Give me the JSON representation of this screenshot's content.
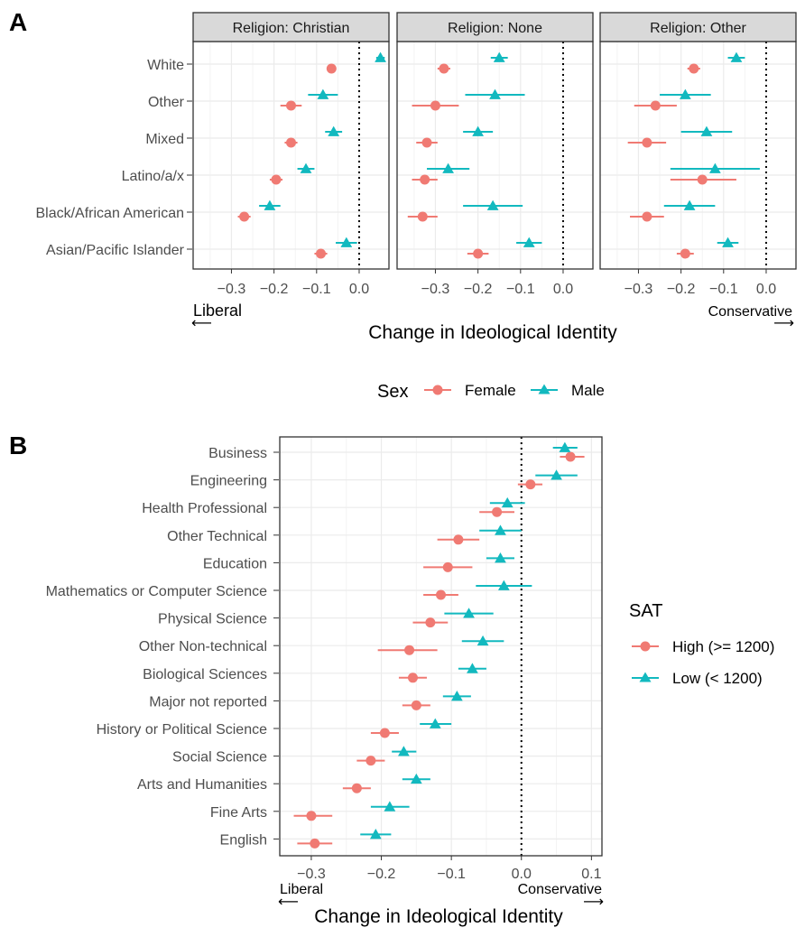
{
  "colors": {
    "female": "#F07A73",
    "male": "#12B9BF",
    "panel_bg": "#ffffff",
    "strip_bg": "#d9d9d9",
    "grid": "#ebebeb",
    "axis_text": "#4d4d4d"
  },
  "chart_data": [
    {
      "panel_label": "A",
      "type": "scatter",
      "subtype": "dot-and-whisker",
      "facets": [
        "Religion: Christian",
        "Religion: None",
        "Religion: Other"
      ],
      "categories": [
        "White",
        "Other",
        "Mixed",
        "Latino/a/x",
        "Black/African American",
        "Asian/Pacific Islander"
      ],
      "xticks": [
        "−0.3",
        "−0.2",
        "−0.1",
        "0.0"
      ],
      "xtick_values": [
        -0.3,
        -0.2,
        -0.1,
        0.0
      ],
      "xlim": [
        -0.39,
        0.07
      ],
      "xlabel": "Change in Ideological Identity",
      "left_annotation": "Liberal",
      "right_annotation": "Conservative",
      "left_arrow": "⟵",
      "right_arrow": "⟶",
      "reference_line": 0,
      "legend": {
        "title": "Sex",
        "position": "bottom",
        "entries": [
          {
            "label": "Female",
            "shape": "circle"
          },
          {
            "label": "Male",
            "shape": "triangle"
          }
        ]
      },
      "series": [
        {
          "name": "Female",
          "facet_values": [
            {
              "est": [
                -0.065,
                -0.16,
                -0.16,
                -0.195,
                -0.27,
                -0.09
              ],
              "lo": [
                -0.075,
                -0.185,
                -0.175,
                -0.21,
                -0.285,
                -0.105
              ],
              "hi": [
                -0.055,
                -0.135,
                -0.145,
                -0.18,
                -0.255,
                -0.075
              ]
            },
            {
              "est": [
                -0.28,
                -0.3,
                -0.32,
                -0.325,
                -0.33,
                -0.2
              ],
              "lo": [
                -0.295,
                -0.355,
                -0.345,
                -0.355,
                -0.365,
                -0.225
              ],
              "hi": [
                -0.265,
                -0.245,
                -0.295,
                -0.295,
                -0.295,
                -0.175
              ]
            },
            {
              "est": [
                -0.17,
                -0.26,
                -0.28,
                -0.15,
                -0.28,
                -0.19
              ],
              "lo": [
                -0.185,
                -0.31,
                -0.325,
                -0.225,
                -0.32,
                -0.21
              ],
              "hi": [
                -0.155,
                -0.21,
                -0.235,
                -0.07,
                -0.24,
                -0.17
              ]
            }
          ]
        },
        {
          "name": "Male",
          "facet_values": [
            {
              "est": [
                0.05,
                -0.085,
                -0.06,
                -0.125,
                -0.21,
                -0.03
              ],
              "lo": [
                0.04,
                -0.12,
                -0.08,
                -0.145,
                -0.235,
                -0.055
              ],
              "hi": [
                0.06,
                -0.05,
                -0.04,
                -0.105,
                -0.185,
                -0.005
              ]
            },
            {
              "est": [
                -0.15,
                -0.16,
                -0.2,
                -0.27,
                -0.165,
                -0.08
              ],
              "lo": [
                -0.17,
                -0.23,
                -0.235,
                -0.32,
                -0.235,
                -0.11
              ],
              "hi": [
                -0.13,
                -0.09,
                -0.165,
                -0.22,
                -0.095,
                -0.05
              ]
            },
            {
              "est": [
                -0.07,
                -0.19,
                -0.14,
                -0.12,
                -0.18,
                -0.09
              ],
              "lo": [
                -0.09,
                -0.25,
                -0.2,
                -0.225,
                -0.24,
                -0.115
              ],
              "hi": [
                -0.05,
                -0.13,
                -0.08,
                -0.015,
                -0.12,
                -0.065
              ]
            }
          ]
        }
      ]
    },
    {
      "panel_label": "B",
      "type": "scatter",
      "subtype": "dot-and-whisker",
      "categories": [
        "Business",
        "Engineering",
        "Health Professional",
        "Other Technical",
        "Education",
        "Mathematics or Computer Science",
        "Physical Science",
        "Other Non-technical",
        "Biological Sciences",
        "Major not reported",
        "History or Political Science",
        "Social Science",
        "Arts and Humanities",
        "Fine Arts",
        "English"
      ],
      "xticks": [
        "−0.3",
        "−0.2",
        "−0.1",
        "0.0",
        "0.1"
      ],
      "xtick_values": [
        -0.3,
        -0.2,
        -0.1,
        0.0,
        0.1
      ],
      "xlim": [
        -0.345,
        0.115
      ],
      "xlabel": "Change in Ideological Identity",
      "left_annotation": "Liberal",
      "right_annotation": "Conservative",
      "left_arrow": "⟵",
      "right_arrow": "⟶",
      "reference_line": 0,
      "legend": {
        "title": "SAT",
        "position": "right",
        "entries": [
          {
            "label": "High (>= 1200)",
            "shape": "circle"
          },
          {
            "label": "Low (< 1200)",
            "shape": "triangle"
          }
        ]
      },
      "series": [
        {
          "name": "High (>= 1200)",
          "est": [
            0.07,
            0.013,
            -0.035,
            -0.09,
            -0.105,
            -0.115,
            -0.13,
            -0.16,
            -0.155,
            -0.15,
            -0.195,
            -0.215,
            -0.235,
            -0.3,
            -0.295
          ],
          "lo": [
            0.055,
            -0.005,
            -0.06,
            -0.12,
            -0.14,
            -0.14,
            -0.155,
            -0.205,
            -0.175,
            -0.17,
            -0.215,
            -0.235,
            -0.255,
            -0.325,
            -0.32
          ],
          "hi": [
            0.09,
            0.03,
            -0.01,
            -0.06,
            -0.07,
            -0.09,
            -0.105,
            -0.12,
            -0.135,
            -0.13,
            -0.175,
            -0.195,
            -0.215,
            -0.27,
            -0.27
          ]
        },
        {
          "name": "Low (< 1200)",
          "est": [
            0.062,
            0.05,
            -0.02,
            -0.03,
            -0.03,
            -0.025,
            -0.075,
            -0.055,
            -0.07,
            -0.092,
            -0.123,
            -0.168,
            -0.15,
            -0.188,
            -0.208
          ],
          "lo": [
            0.045,
            0.02,
            -0.045,
            -0.06,
            -0.05,
            -0.065,
            -0.11,
            -0.085,
            -0.09,
            -0.112,
            -0.145,
            -0.185,
            -0.17,
            -0.215,
            -0.23
          ],
          "hi": [
            0.08,
            0.08,
            0.005,
            0.0,
            -0.01,
            0.015,
            -0.04,
            -0.025,
            -0.05,
            -0.072,
            -0.1,
            -0.15,
            -0.13,
            -0.16,
            -0.186
          ]
        }
      ]
    }
  ]
}
